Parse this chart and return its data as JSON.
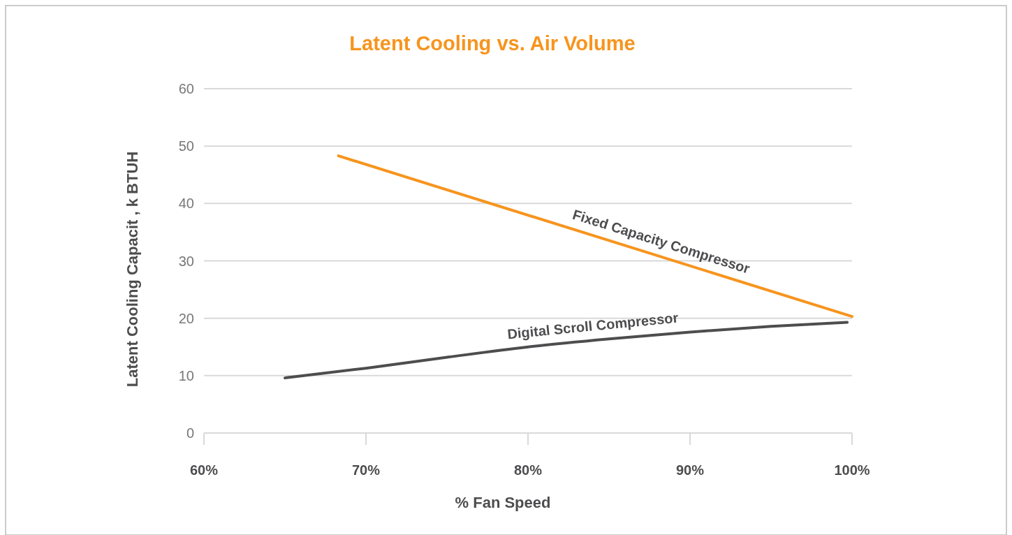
{
  "chart_data": {
    "type": "line",
    "title": "Latent Cooling vs. Air Volume",
    "xlabel": "% Fan Speed",
    "ylabel": "Latent Cooling Capacit , k BTUH",
    "xlim": [
      60,
      100
    ],
    "xticks": [
      {
        "value": 60,
        "label": "60%"
      },
      {
        "value": 70,
        "label": "70%"
      },
      {
        "value": 80,
        "label": "80%"
      },
      {
        "value": 90,
        "label": "90%"
      },
      {
        "value": 100,
        "label": "100%"
      }
    ],
    "ylim": [
      0,
      60
    ],
    "yticks": [
      0,
      10,
      20,
      30,
      40,
      50,
      60
    ],
    "grid": "y",
    "marker": "none",
    "line_style": "solid",
    "series": [
      {
        "name": "Fixed Capacity Compressor",
        "color": "#f7941d",
        "x": [
          68.3,
          100
        ],
        "values": [
          48.3,
          20.3
        ]
      },
      {
        "name": "Digital Scroll Compressor",
        "color": "#4d4d4f",
        "x": [
          65,
          70,
          75,
          80,
          85,
          90,
          95,
          99.7
        ],
        "values": [
          9.6,
          11.3,
          13.2,
          15.0,
          16.4,
          17.6,
          18.6,
          19.3
        ]
      }
    ]
  }
}
